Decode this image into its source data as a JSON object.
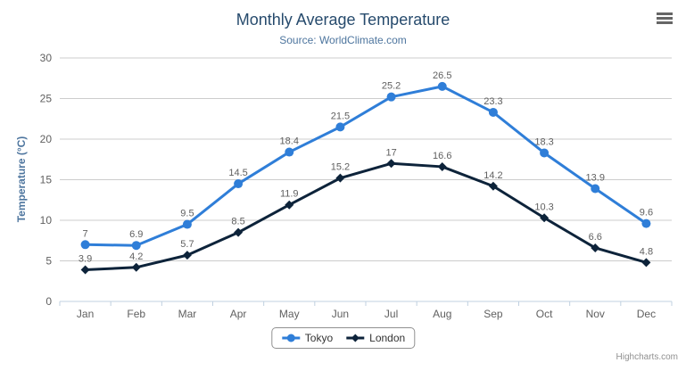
{
  "credits": {
    "label": "Highcharts.com"
  },
  "export_menu": {
    "icon": "hamburger-icon"
  },
  "chart_data": {
    "type": "line",
    "title": "Monthly Average Temperature",
    "subtitle": "Source: WorldClimate.com",
    "categories": [
      "Jan",
      "Feb",
      "Mar",
      "Apr",
      "May",
      "Jun",
      "Jul",
      "Aug",
      "Sep",
      "Oct",
      "Nov",
      "Dec"
    ],
    "series": [
      {
        "name": "Tokyo",
        "marker": "circle",
        "color": "#2f7ed8",
        "values": [
          7,
          6.9,
          9.5,
          14.5,
          18.4,
          21.5,
          25.2,
          26.5,
          23.3,
          18.3,
          13.9,
          9.6
        ]
      },
      {
        "name": "London",
        "marker": "diamond",
        "color": "#0d233a",
        "values": [
          3.9,
          4.2,
          5.7,
          8.5,
          11.9,
          15.2,
          17,
          16.6,
          14.2,
          10.3,
          6.6,
          4.8
        ]
      }
    ],
    "xlabel": "",
    "ylabel": "Temperature (°C)",
    "ylim": [
      0,
      30
    ],
    "ytick_step": 5,
    "grid": true,
    "data_labels": true,
    "legend_position": "bottom",
    "colors": {
      "grid_line": "#cccccc",
      "axis_line": "#c0d0e0",
      "tick_label": "#606060",
      "data_label": "#606060",
      "title": "#274b6d",
      "subtitle": "#4d759e"
    }
  }
}
